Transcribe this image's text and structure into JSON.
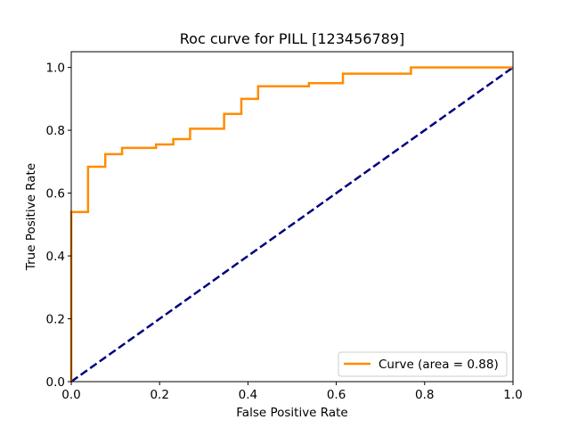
{
  "chart_data": {
    "type": "line",
    "title": "Roc curve for PILL [123456789]",
    "xlabel": "False Positive Rate",
    "ylabel": "True Positive Rate",
    "xlim": [
      0.0,
      1.0
    ],
    "ylim": [
      0.0,
      1.05
    ],
    "x_ticks": [
      "0.0",
      "0.2",
      "0.4",
      "0.6",
      "0.8",
      "1.0"
    ],
    "y_ticks": [
      "0.0",
      "0.2",
      "0.4",
      "0.6",
      "0.8",
      "1.0"
    ],
    "grid": false,
    "legend_position": "lower-right",
    "series": [
      {
        "name": "Curve (area = 0.88)",
        "color": "#ff8c00",
        "style": "solid",
        "points": [
          [
            0.0,
            0.0
          ],
          [
            0.0,
            0.54
          ],
          [
            0.038,
            0.54
          ],
          [
            0.038,
            0.684
          ],
          [
            0.077,
            0.684
          ],
          [
            0.077,
            0.724
          ],
          [
            0.115,
            0.724
          ],
          [
            0.115,
            0.744
          ],
          [
            0.192,
            0.744
          ],
          [
            0.192,
            0.755
          ],
          [
            0.231,
            0.755
          ],
          [
            0.231,
            0.772
          ],
          [
            0.269,
            0.772
          ],
          [
            0.269,
            0.805
          ],
          [
            0.346,
            0.805
          ],
          [
            0.346,
            0.852
          ],
          [
            0.385,
            0.852
          ],
          [
            0.385,
            0.9
          ],
          [
            0.423,
            0.9
          ],
          [
            0.423,
            0.94
          ],
          [
            0.538,
            0.94
          ],
          [
            0.538,
            0.95
          ],
          [
            0.615,
            0.95
          ],
          [
            0.615,
            0.98
          ],
          [
            0.769,
            0.98
          ],
          [
            0.769,
            1.0
          ],
          [
            1.0,
            1.0
          ]
        ]
      },
      {
        "color": "#000080",
        "style": "dashed",
        "points": [
          [
            0.0,
            0.0
          ],
          [
            1.0,
            1.0
          ]
        ]
      }
    ]
  }
}
